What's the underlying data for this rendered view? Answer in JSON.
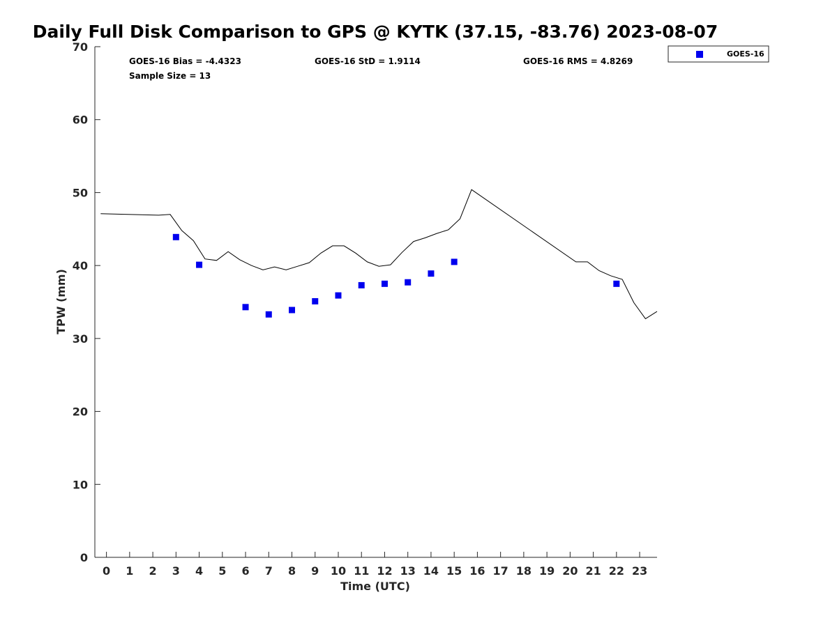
{
  "chart_data": {
    "type": "scatter",
    "title": "Daily Full Disk Comparison to GPS @ KYTK (37.15, -83.76) 2023-08-07",
    "xlabel": "Time (UTC)",
    "ylabel": "TPW (mm)",
    "xlim": [
      -0.5,
      23.75
    ],
    "ylim": [
      0,
      70
    ],
    "x_ticks": [
      0,
      1,
      2,
      3,
      4,
      5,
      6,
      7,
      8,
      9,
      10,
      11,
      12,
      13,
      14,
      15,
      16,
      17,
      18,
      19,
      20,
      21,
      22,
      23
    ],
    "y_ticks": [
      0,
      10,
      20,
      30,
      40,
      50,
      60,
      70
    ],
    "grid": false,
    "legend_position": "top-right",
    "stats": {
      "bias": "GOES-16 Bias = -4.4323",
      "std": "GOES-16 StD = 1.9114",
      "rms": "GOES-16 RMS = 4.8269",
      "sample_size": "Sample Size = 13"
    },
    "series": [
      {
        "name": "GOES-16",
        "marker": "square",
        "color": "#0000ee",
        "in_legend": true,
        "points": [
          [
            3,
            43.9
          ],
          [
            4,
            40.1
          ],
          [
            6,
            34.3
          ],
          [
            7,
            33.3
          ],
          [
            8,
            33.9
          ],
          [
            9,
            35.1
          ],
          [
            10,
            35.9
          ],
          [
            11,
            37.3
          ],
          [
            12,
            37.5
          ],
          [
            13,
            37.7
          ],
          [
            14,
            38.9
          ],
          [
            15,
            40.5
          ],
          [
            22,
            37.5
          ]
        ]
      },
      {
        "marker": "line",
        "color": "#000000",
        "in_legend": false,
        "points": [
          [
            -0.25,
            47.1
          ],
          [
            2.25,
            46.9
          ],
          [
            2.75,
            47.0
          ],
          [
            3.25,
            44.8
          ],
          [
            3.75,
            43.4
          ],
          [
            4.25,
            40.9
          ],
          [
            4.75,
            40.7
          ],
          [
            5.25,
            41.9
          ],
          [
            5.75,
            40.8
          ],
          [
            6.25,
            40.0
          ],
          [
            6.75,
            39.4
          ],
          [
            7.25,
            39.8
          ],
          [
            7.75,
            39.4
          ],
          [
            8.25,
            39.9
          ],
          [
            8.75,
            40.4
          ],
          [
            9.25,
            41.7
          ],
          [
            9.75,
            42.7
          ],
          [
            10.25,
            42.7
          ],
          [
            10.75,
            41.7
          ],
          [
            11.25,
            40.5
          ],
          [
            11.75,
            39.9
          ],
          [
            12.25,
            40.1
          ],
          [
            12.75,
            41.8
          ],
          [
            13.25,
            43.3
          ],
          [
            13.75,
            43.8
          ],
          [
            14.25,
            44.4
          ],
          [
            14.75,
            44.9
          ],
          [
            15.25,
            46.4
          ],
          [
            15.75,
            50.4
          ],
          [
            20.25,
            40.5
          ],
          [
            20.75,
            40.5
          ],
          [
            21.25,
            39.3
          ],
          [
            21.75,
            38.6
          ],
          [
            22.25,
            38.1
          ],
          [
            22.75,
            34.9
          ],
          [
            23.25,
            32.7
          ],
          [
            23.75,
            33.7
          ]
        ]
      }
    ]
  }
}
